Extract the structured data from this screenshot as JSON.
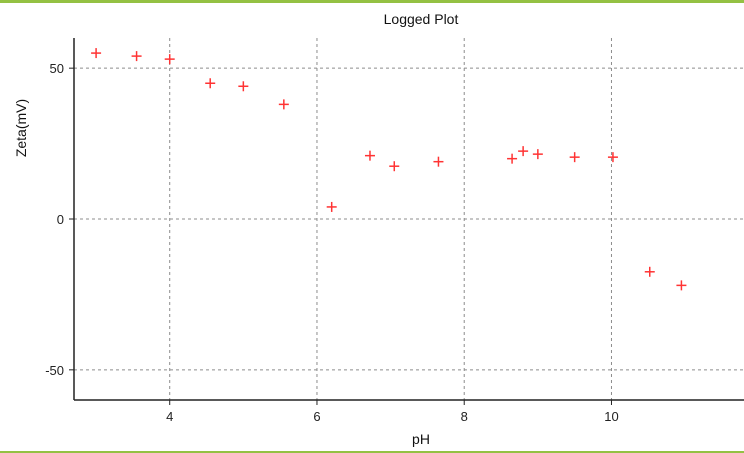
{
  "chart_data": {
    "type": "scatter",
    "title": "Logged Plot",
    "xlabel": "pH",
    "ylabel": "Zeta(mV)",
    "xlim": [
      2.7,
      11.8
    ],
    "ylim": [
      -60,
      60
    ],
    "xticks": [
      4,
      6,
      8,
      10
    ],
    "yticks": [
      -50,
      0,
      50
    ],
    "grid": true,
    "marker": "plus",
    "series": [
      {
        "x": [
          3.0,
          3.55,
          4.0,
          4.55,
          5.0,
          5.55,
          6.2,
          6.72,
          7.05,
          7.65,
          8.65,
          8.8,
          9.0,
          9.5,
          10.02,
          10.52,
          10.95
        ],
        "y": [
          55,
          54,
          53,
          45,
          44,
          38,
          4,
          21,
          17.5,
          19,
          20,
          22.5,
          21.5,
          20.5,
          20.5,
          -17.5,
          -22
        ]
      }
    ]
  },
  "colors": {
    "marker": "#ff3333",
    "grid": "#8c8c8c",
    "axis": "#222222",
    "accent": "#94c143"
  }
}
